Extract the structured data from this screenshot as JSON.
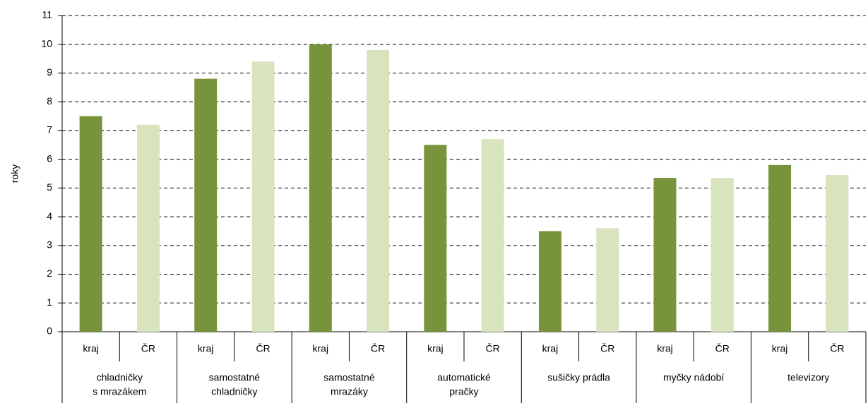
{
  "chart_data": {
    "type": "bar",
    "y_label": "roky",
    "categories": [
      [
        "chladničky",
        "s mrazákem"
      ],
      [
        "samostatné",
        "chladničky"
      ],
      [
        "samostatné",
        "mrazáky"
      ],
      [
        "automatické",
        "pračky"
      ],
      [
        "sušičky prádla"
      ],
      [
        "myčky nádobí"
      ],
      [
        "televizory"
      ]
    ],
    "series": [
      {
        "name": "kraj",
        "color": "#77933c",
        "values": [
          7.5,
          8.8,
          10.0,
          6.5,
          3.5,
          5.35,
          5.8
        ]
      },
      {
        "name": "ČR",
        "color": "#d7e4bd",
        "values": [
          7.2,
          9.4,
          9.8,
          6.7,
          3.6,
          5.35,
          5.45
        ]
      }
    ],
    "ylim": [
      0,
      11
    ],
    "yticks": [
      0,
      1,
      2,
      3,
      4,
      5,
      6,
      7,
      8,
      9,
      10,
      11
    ],
    "grid": true
  }
}
